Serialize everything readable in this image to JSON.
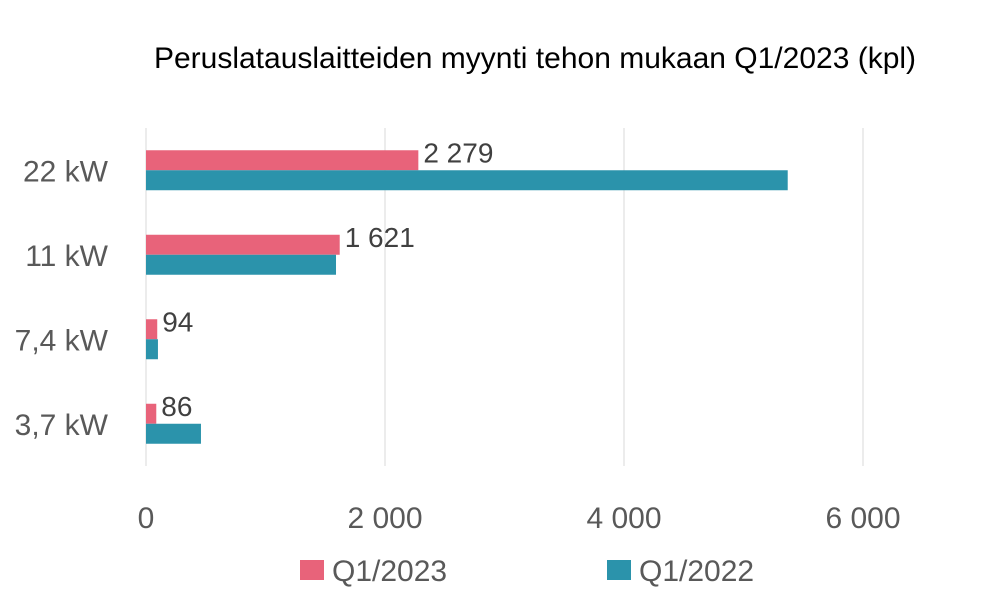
{
  "chart_data": {
    "type": "bar",
    "orientation": "horizontal",
    "title": "Peruslatauslaitteiden myynti tehon mukaan Q1/2023 (kpl)",
    "categories": [
      "22 kW",
      "11 kW",
      "7,4 kW",
      "3,7 kW"
    ],
    "series": [
      {
        "name": "Q1/2023",
        "values": [
          2279,
          1621,
          94,
          86
        ],
        "color": "#e8637a",
        "labels": [
          "2 279",
          "1 621",
          "94",
          "86"
        ]
      },
      {
        "name": "Q1/2022",
        "values": [
          5370,
          1590,
          100,
          460
        ],
        "color": "#2b93ab"
      }
    ],
    "xlim": [
      0,
      6000
    ],
    "xticks": [
      0,
      2000,
      4000,
      6000
    ],
    "xtick_labels": [
      "0",
      "2 000",
      "4 000",
      "6 000"
    ],
    "grid": true,
    "legend_position": "bottom"
  }
}
